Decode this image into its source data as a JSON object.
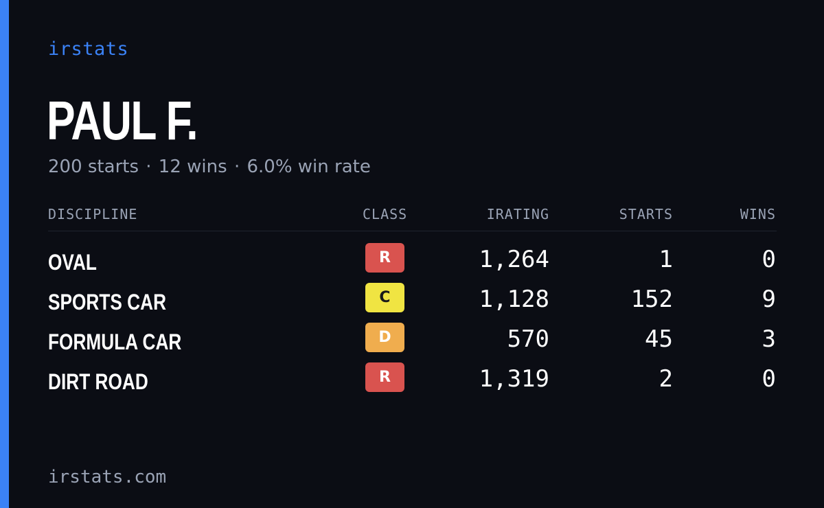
{
  "brand": "irstats",
  "driver": {
    "name": "PAUL F.",
    "starts_text": "200 starts",
    "wins_text": "12 wins",
    "winrate_text": "6.0% win rate",
    "separator": "·"
  },
  "table": {
    "headers": {
      "discipline": "DISCIPLINE",
      "class": "CLASS",
      "irating": "IRATING",
      "starts": "STARTS",
      "wins": "WINS"
    },
    "rows": [
      {
        "discipline": "OVAL",
        "class": "R",
        "class_bg": "#d9534f",
        "class_fg": "#ffffff",
        "irating": "1,264",
        "starts": "1",
        "wins": "0"
      },
      {
        "discipline": "SPORTS CAR",
        "class": "C",
        "class_bg": "#f0e442",
        "class_fg": "#1a1a1a",
        "irating": "1,128",
        "starts": "152",
        "wins": "9"
      },
      {
        "discipline": "FORMULA CAR",
        "class": "D",
        "class_bg": "#f0ad4e",
        "class_fg": "#ffffff",
        "irating": "570",
        "starts": "45",
        "wins": "3"
      },
      {
        "discipline": "DIRT ROAD",
        "class": "R",
        "class_bg": "#d9534f",
        "class_fg": "#ffffff",
        "irating": "1,319",
        "starts": "2",
        "wins": "0"
      }
    ]
  },
  "footer": "irstats.com",
  "colors": {
    "background": "#0b0d14",
    "accent": "#3b82f6",
    "muted": "#9aa3b5",
    "text": "#ffffff"
  }
}
